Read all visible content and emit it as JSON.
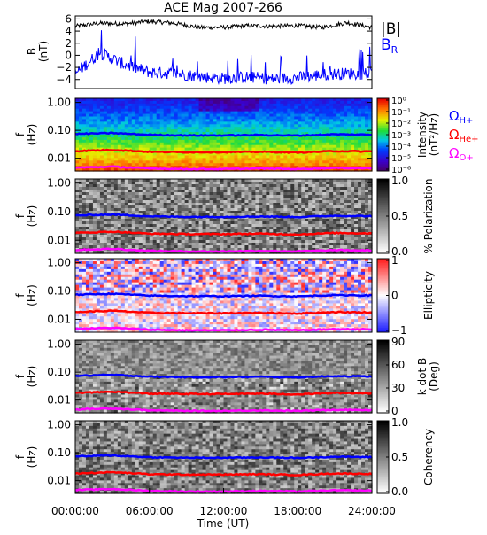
{
  "title": "ACE Mag 2007-266",
  "xaxis": {
    "label": "Time (UT)",
    "ticks": [
      "00:00:00",
      "06:00:00",
      "12:00:00",
      "18:00:00",
      "24:00:00"
    ],
    "hours": [
      0,
      6,
      12,
      18,
      24
    ]
  },
  "colors": {
    "h_plus": "#0000ff",
    "he_plus": "#ff0000",
    "o_plus": "#ff00ff",
    "bmag": "#000000",
    "br": "#0000ff"
  },
  "chart_data": [
    {
      "type": "line",
      "name": "field",
      "ylabel": "B",
      "yunits": "(nT)",
      "ylim": [
        -5.5,
        6.5
      ],
      "yticks": [
        "6",
        "4",
        "2",
        "0",
        "-2",
        "-4"
      ],
      "ytick_values": [
        6,
        4,
        2,
        0,
        -2,
        -4
      ],
      "legend": [
        "|B|",
        "B"
      ],
      "legend_sub": [
        "",
        "R"
      ],
      "x_hours": [
        0,
        2,
        4,
        6,
        8,
        10,
        12,
        14,
        16,
        18,
        20,
        22,
        24
      ],
      "series": [
        {
          "name": "|B|",
          "values": [
            4.8,
            5.3,
            5.2,
            5.6,
            5.3,
            4.6,
            4.6,
            4.9,
            4.8,
            4.9,
            4.6,
            5.4,
            4.6
          ]
        },
        {
          "name": "BR",
          "values": [
            -3.0,
            0.4,
            -1.5,
            -2.8,
            -3.0,
            -3.5,
            -3.8,
            -3.6,
            -3.9,
            -3.7,
            -3.2,
            -3.0,
            -3.1
          ]
        }
      ]
    },
    {
      "type": "heatmap",
      "name": "intensity",
      "ylabel": "f",
      "yunits": "(Hz)",
      "yticks": [
        "1.00",
        "0.10",
        "0.01"
      ],
      "ytick_values": [
        1,
        0.1,
        0.01
      ],
      "ylim": [
        0.0035,
        1.4
      ],
      "colorbar_title": "Intensity",
      "colorbar_units": "(nT²/Hz)",
      "colorbar_ticks": [
        "10⁰",
        "10⁻¹",
        "10⁻²",
        "10⁻³",
        "10⁻⁴",
        "10⁻⁵",
        "10⁻⁶"
      ],
      "colorbar_colormap": "rainbow",
      "cyclotron_labels": [
        {
          "symbol": "Ω",
          "sub": "H+"
        },
        {
          "symbol": "Ω",
          "sub": "He+"
        },
        {
          "symbol": "Ω",
          "sub": "O+"
        }
      ]
    },
    {
      "type": "heatmap",
      "name": "polarization",
      "ylabel": "f",
      "yunits": "(Hz)",
      "yticks": [
        "1.00",
        "0.10",
        "0.01"
      ],
      "ytick_values": [
        1,
        0.1,
        0.01
      ],
      "ylim": [
        0.0035,
        1.4
      ],
      "colorbar_title": "% Polarization",
      "colorbar_ticks": [
        "1.0",
        "0.5",
        "0.0"
      ],
      "colorbar_colormap": "gray"
    },
    {
      "type": "heatmap",
      "name": "ellipticity",
      "ylabel": "f",
      "yunits": "(Hz)",
      "yticks": [
        "1.00",
        "0.10",
        "0.01"
      ],
      "ytick_values": [
        1,
        0.1,
        0.01
      ],
      "ylim": [
        0.0035,
        1.4
      ],
      "colorbar_title": "Ellipticity",
      "colorbar_ticks": [
        "1",
        "0",
        "−1"
      ],
      "colorbar_colormap": "bwr"
    },
    {
      "type": "heatmap",
      "name": "kdotb",
      "ylabel": "f",
      "yunits": "(Hz)",
      "yticks": [
        "1.00",
        "0.10",
        "0.01"
      ],
      "ytick_values": [
        1,
        0.1,
        0.01
      ],
      "ylim": [
        0.0035,
        1.4
      ],
      "colorbar_title": "k dot B",
      "colorbar_units": "(Deg)",
      "colorbar_ticks": [
        "90",
        "60",
        "30",
        "0"
      ],
      "colorbar_colormap": "gray"
    },
    {
      "type": "heatmap",
      "name": "coherency",
      "ylabel": "f",
      "yunits": "(Hz)",
      "yticks": [
        "1.00",
        "0.10",
        "0.01"
      ],
      "ytick_values": [
        1,
        0.1,
        0.01
      ],
      "ylim": [
        0.0035,
        1.4
      ],
      "colorbar_title": "Coherency",
      "colorbar_ticks": [
        "1.0",
        "0.5",
        "0.0"
      ],
      "colorbar_colormap": "gray"
    }
  ],
  "cyclotron_lines": {
    "x_hours": [
      0,
      3,
      6,
      9,
      12,
      15,
      18,
      21,
      24
    ],
    "h_plus_hz": [
      0.074,
      0.08,
      0.069,
      0.066,
      0.066,
      0.068,
      0.065,
      0.072,
      0.07
    ],
    "he_plus_hz": [
      0.018,
      0.02,
      0.017,
      0.0165,
      0.0165,
      0.017,
      0.016,
      0.018,
      0.0175
    ],
    "o_plus_hz": [
      0.0046,
      0.005,
      0.0043,
      0.0041,
      0.0041,
      0.0043,
      0.0041,
      0.0045,
      0.0044
    ]
  }
}
